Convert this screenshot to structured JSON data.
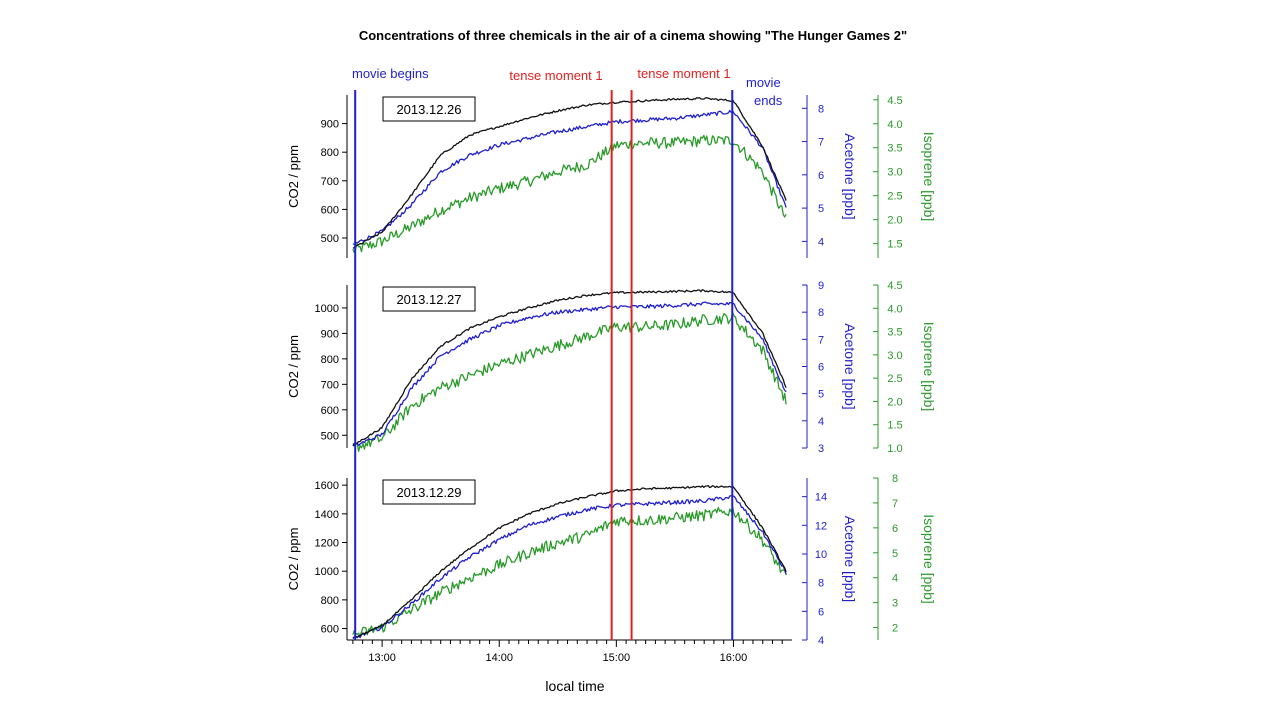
{
  "title": "Concentrations of three chemicals in the air of a cinema showing \"The Hunger Games 2\"",
  "xlabel": "local time",
  "colors": {
    "co2": "#111111",
    "acetone": "#1f1fcc",
    "isoprene": "#2a9a2a",
    "event_movie": "#1f1fcc",
    "event_tense": "#e02020"
  },
  "events": [
    {
      "label": "movie begins",
      "time": 12.77,
      "color_key": "event_movie"
    },
    {
      "label": "tense moment 1",
      "time": 14.96,
      "color_key": "event_tense"
    },
    {
      "label": "tense moment 1",
      "time": 15.13,
      "color_key": "event_tense"
    },
    {
      "label": "movie ends",
      "time": 15.99,
      "color_key": "event_movie"
    }
  ],
  "chart_data": [
    {
      "type": "line",
      "date_label": "2013.12.26",
      "xlim": [
        12.7,
        16.5
      ],
      "x_ticks": [
        "13:00",
        "14:00",
        "15:00",
        "16:00"
      ],
      "axes": {
        "co2": {
          "label": "CO2 / ppm",
          "lim": [
            430,
            1000
          ],
          "ticks": [
            500,
            600,
            700,
            800,
            900
          ]
        },
        "acetone": {
          "label": "Acetone [ppb]",
          "lim": [
            3.5,
            8.4
          ],
          "ticks": [
            4,
            5,
            6,
            7,
            8
          ]
        },
        "isoprene": {
          "label": "Isoprene [ppb]",
          "lim": [
            1.2,
            4.6
          ],
          "ticks": [
            1.5,
            2.0,
            2.5,
            3.0,
            3.5,
            4.0,
            4.5
          ]
        }
      },
      "series": [
        {
          "axis": "co2",
          "x": [
            12.75,
            13.0,
            13.25,
            13.5,
            13.75,
            14.0,
            14.25,
            14.5,
            14.75,
            15.0,
            15.25,
            15.5,
            15.75,
            16.0,
            16.25,
            16.45
          ],
          "values": [
            465,
            520,
            650,
            790,
            860,
            890,
            920,
            945,
            965,
            975,
            980,
            985,
            988,
            980,
            820,
            630
          ]
        },
        {
          "axis": "acetone",
          "x": [
            12.75,
            13.0,
            13.25,
            13.5,
            13.75,
            14.0,
            14.25,
            14.5,
            14.75,
            15.0,
            15.25,
            15.5,
            15.75,
            16.0,
            16.25,
            16.45
          ],
          "values": [
            3.9,
            4.3,
            5.1,
            6.1,
            6.6,
            6.9,
            7.1,
            7.3,
            7.45,
            7.6,
            7.65,
            7.7,
            7.8,
            7.9,
            6.8,
            5.0
          ]
        },
        {
          "axis": "isoprene",
          "x": [
            12.75,
            13.0,
            13.25,
            13.5,
            13.75,
            14.0,
            14.25,
            14.5,
            14.75,
            15.0,
            15.25,
            15.5,
            15.75,
            16.0,
            16.25,
            16.45
          ],
          "values": [
            1.35,
            1.55,
            1.85,
            2.2,
            2.45,
            2.65,
            2.8,
            3.0,
            3.15,
            3.55,
            3.6,
            3.6,
            3.65,
            3.65,
            3.0,
            2.0
          ]
        }
      ]
    },
    {
      "type": "line",
      "date_label": "2013.12.27",
      "xlim": [
        12.7,
        16.5
      ],
      "x_ticks": [
        "13:00",
        "14:00",
        "15:00",
        "16:00"
      ],
      "axes": {
        "co2": {
          "label": "CO2 / ppm",
          "lim": [
            450,
            1090
          ],
          "ticks": [
            500,
            600,
            700,
            800,
            900,
            1000
          ]
        },
        "acetone": {
          "label": "Acetone [ppb]",
          "lim": [
            3,
            9
          ],
          "ticks": [
            3,
            4,
            5,
            6,
            7,
            8,
            9
          ]
        },
        "isoprene": {
          "label": "Isoprene [ppb]",
          "lim": [
            1.0,
            4.5
          ],
          "ticks": [
            1.0,
            1.5,
            2.0,
            2.5,
            3.0,
            3.5,
            4.0,
            4.5
          ]
        }
      },
      "series": [
        {
          "axis": "co2",
          "x": [
            12.75,
            13.0,
            13.25,
            13.5,
            13.75,
            14.0,
            14.25,
            14.5,
            14.75,
            15.0,
            15.25,
            15.5,
            15.75,
            16.0,
            16.25,
            16.45
          ],
          "values": [
            460,
            530,
            720,
            850,
            920,
            965,
            1000,
            1030,
            1050,
            1060,
            1062,
            1065,
            1068,
            1060,
            900,
            690
          ]
        },
        {
          "axis": "acetone",
          "x": [
            12.75,
            13.0,
            13.25,
            13.5,
            13.75,
            14.0,
            14.25,
            14.5,
            14.75,
            15.0,
            15.25,
            15.5,
            15.75,
            16.0,
            16.25,
            16.45
          ],
          "values": [
            3.05,
            3.5,
            5.2,
            6.4,
            7.0,
            7.5,
            7.8,
            8.0,
            8.1,
            8.2,
            8.2,
            8.25,
            8.3,
            8.3,
            7.0,
            5.0
          ]
        },
        {
          "axis": "isoprene",
          "x": [
            12.75,
            13.0,
            13.25,
            13.5,
            13.75,
            14.0,
            14.25,
            14.5,
            14.75,
            15.0,
            15.25,
            15.5,
            15.75,
            16.0,
            16.25,
            16.45
          ],
          "values": [
            1.0,
            1.2,
            1.9,
            2.3,
            2.55,
            2.8,
            3.0,
            3.2,
            3.4,
            3.6,
            3.6,
            3.65,
            3.75,
            3.8,
            3.1,
            2.0
          ]
        }
      ]
    },
    {
      "type": "line",
      "date_label": "2013.12.29",
      "xlim": [
        12.7,
        16.5
      ],
      "x_ticks": [
        "13:00",
        "14:00",
        "15:00",
        "16:00"
      ],
      "axes": {
        "co2": {
          "label": "CO2 / ppm",
          "lim": [
            520,
            1650
          ],
          "ticks": [
            600,
            800,
            1000,
            1200,
            1400,
            1600
          ]
        },
        "acetone": {
          "label": "Acetone [ppb]",
          "lim": [
            4,
            15.3
          ],
          "ticks": [
            4,
            6,
            8,
            10,
            12,
            14
          ]
        },
        "isoprene": {
          "label": "Isoprene [ppb]",
          "lim": [
            1.5,
            8
          ],
          "ticks": [
            2,
            3,
            4,
            5,
            6,
            7,
            8
          ]
        }
      },
      "series": [
        {
          "axis": "co2",
          "x": [
            12.75,
            13.0,
            13.25,
            13.5,
            13.75,
            14.0,
            14.25,
            14.5,
            14.75,
            15.0,
            15.25,
            15.5,
            15.75,
            16.0,
            16.25,
            16.45
          ],
          "values": [
            530,
            620,
            800,
            1000,
            1160,
            1300,
            1400,
            1470,
            1520,
            1560,
            1575,
            1580,
            1590,
            1590,
            1300,
            1000
          ]
        },
        {
          "axis": "acetone",
          "x": [
            12.75,
            13.0,
            13.25,
            13.5,
            13.75,
            14.0,
            14.25,
            14.5,
            14.75,
            15.0,
            15.25,
            15.5,
            15.75,
            16.0,
            16.25,
            16.45
          ],
          "values": [
            4.1,
            4.9,
            6.5,
            8.3,
            9.8,
            11.0,
            12.0,
            12.6,
            13.1,
            13.4,
            13.5,
            13.6,
            13.7,
            14.0,
            11.5,
            8.7
          ]
        },
        {
          "axis": "isoprene",
          "x": [
            12.75,
            13.0,
            13.25,
            13.5,
            13.75,
            14.0,
            14.25,
            14.5,
            14.75,
            15.0,
            15.25,
            15.5,
            15.75,
            16.0,
            16.25,
            16.45
          ],
          "values": [
            1.7,
            2.0,
            2.7,
            3.4,
            4.0,
            4.5,
            5.0,
            5.4,
            5.7,
            6.3,
            6.3,
            6.4,
            6.5,
            6.7,
            5.5,
            4.0
          ]
        }
      ]
    }
  ]
}
